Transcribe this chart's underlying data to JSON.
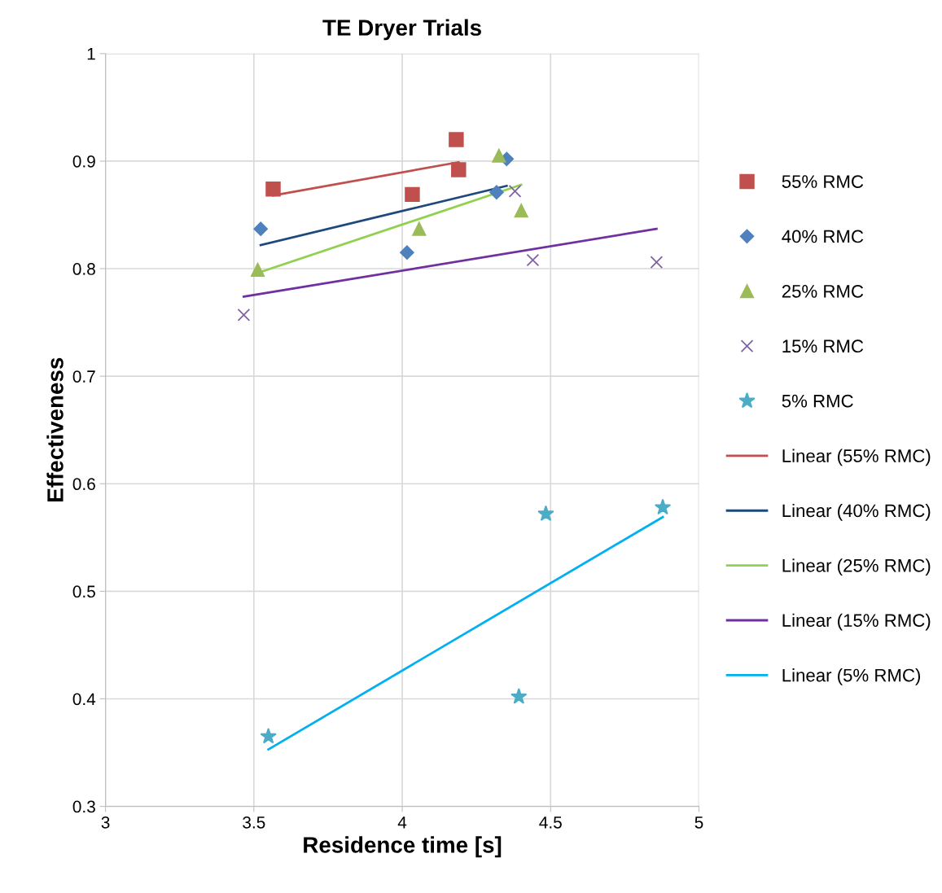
{
  "chart_data": {
    "type": "scatter",
    "title": "TE Dryer Trials",
    "xlabel": "Residence time [s]",
    "ylabel": "Effectiveness",
    "xlim": [
      3,
      5
    ],
    "xticks": [
      3,
      3.5,
      4,
      4.5,
      5
    ],
    "ylim": [
      0.3,
      1
    ],
    "yticks": [
      0.3,
      0.4,
      0.5,
      0.6,
      0.7,
      0.8,
      0.9,
      1
    ],
    "grid": true,
    "legend": "right",
    "series": [
      {
        "name": "55% RMC",
        "marker": "square",
        "color": "#c0504d",
        "x": [
          3.565,
          4.182,
          4.034,
          4.19
        ],
        "values": [
          0.874,
          0.92,
          0.869,
          0.892
        ]
      },
      {
        "name": "40% RMC",
        "marker": "diamond",
        "color": "#4f81bd",
        "x": [
          3.523,
          4.016,
          4.318,
          4.352
        ],
        "values": [
          0.837,
          0.815,
          0.871,
          0.902
        ]
      },
      {
        "name": "25% RMC",
        "marker": "triangle",
        "color": "#9bbb59",
        "x": [
          3.513,
          4.057,
          4.326,
          4.401
        ],
        "values": [
          0.799,
          0.837,
          0.905,
          0.854
        ]
      },
      {
        "name": "15% RMC",
        "marker": "cross",
        "color": "#8064a2",
        "x": [
          3.466,
          4.38,
          4.44,
          4.857
        ],
        "values": [
          0.757,
          0.872,
          0.808,
          0.806
        ]
      },
      {
        "name": "5% RMC",
        "marker": "star",
        "color": "#4bacc6",
        "x": [
          3.549,
          4.393,
          4.484,
          4.878
        ],
        "values": [
          0.365,
          0.402,
          0.572,
          0.578
        ]
      },
      {
        "name": "Linear (55% RMC)",
        "type": "line",
        "color": "#c0504d",
        "x": [
          3.565,
          4.19
        ],
        "values": [
          0.868,
          0.899
        ]
      },
      {
        "name": "Linear (40% RMC)",
        "type": "line",
        "color": "#1f497d",
        "x": [
          3.523,
          4.352
        ],
        "values": [
          0.822,
          0.877
        ]
      },
      {
        "name": "Linear (25% RMC)",
        "type": "line",
        "color": "#92d050",
        "x": [
          3.513,
          4.401
        ],
        "values": [
          0.796,
          0.878
        ]
      },
      {
        "name": "Linear (15% RMC)",
        "type": "line",
        "color": "#7030a0",
        "x": [
          3.466,
          4.857
        ],
        "values": [
          0.774,
          0.837
        ]
      },
      {
        "name": "Linear (5% RMC)",
        "type": "line",
        "color": "#00b0f0",
        "x": [
          3.549,
          4.878
        ],
        "values": [
          0.353,
          0.569
        ]
      }
    ]
  }
}
